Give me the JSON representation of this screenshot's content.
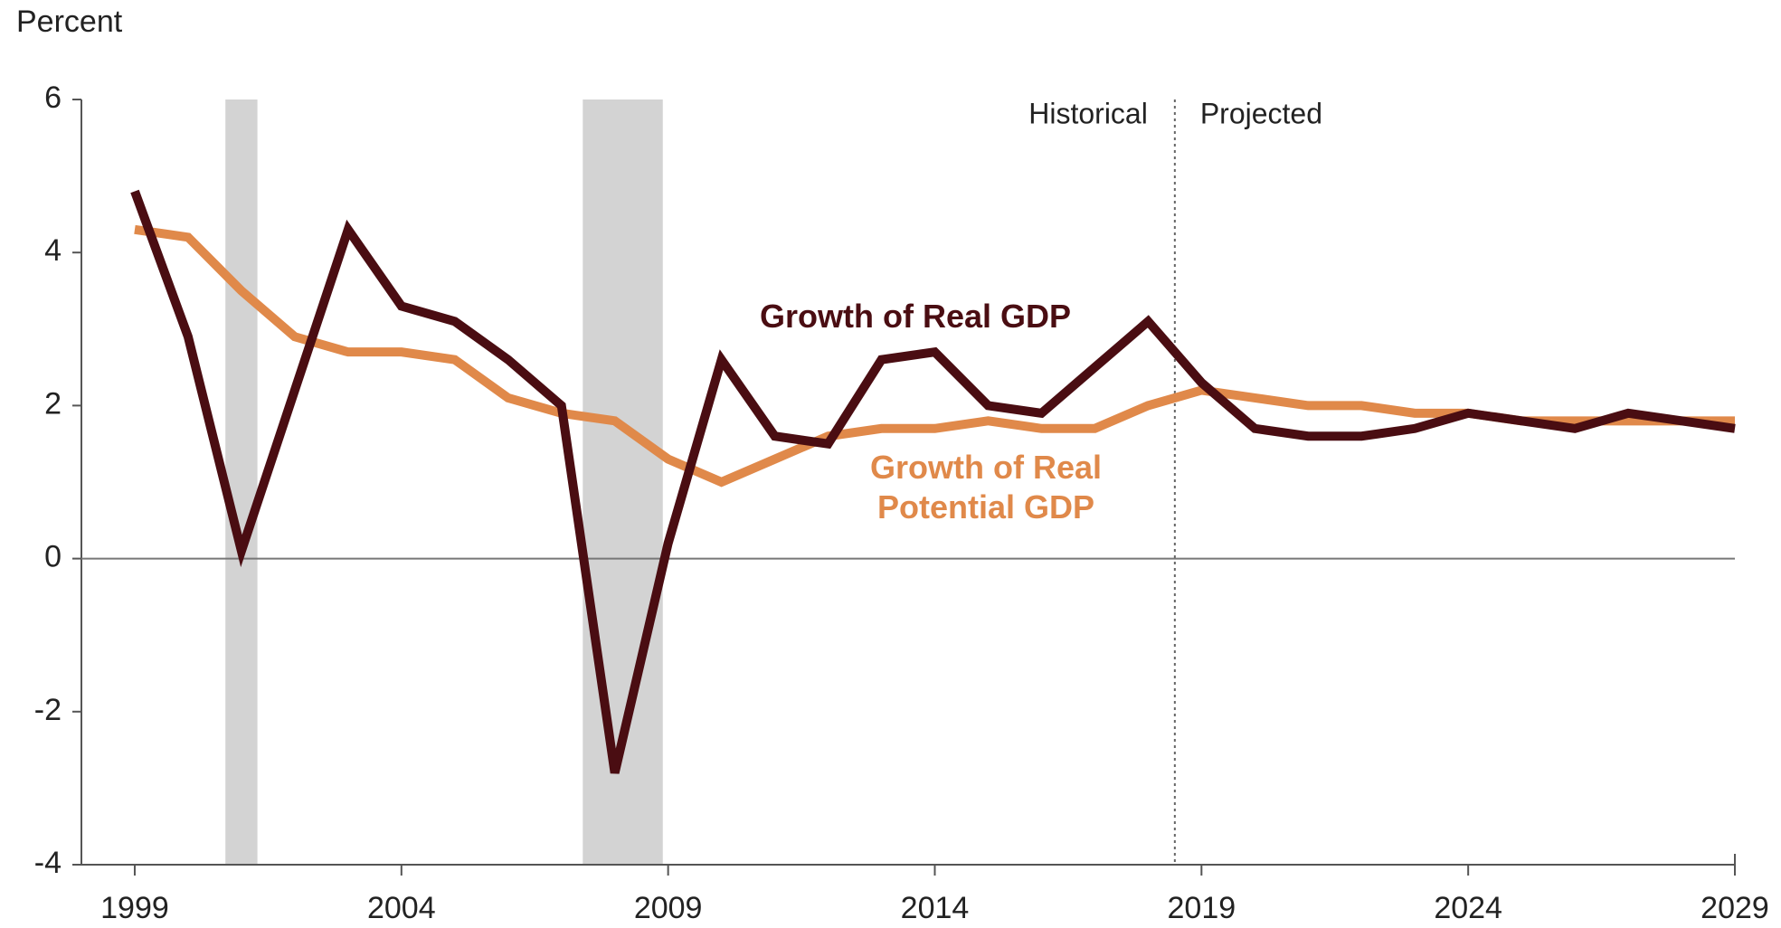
{
  "chart_data": {
    "type": "line",
    "y_axis_label": "Percent",
    "x": [
      1999,
      2000,
      2001,
      2002,
      2003,
      2004,
      2005,
      2006,
      2007,
      2008,
      2009,
      2010,
      2011,
      2012,
      2013,
      2014,
      2015,
      2016,
      2017,
      2018,
      2019,
      2020,
      2021,
      2022,
      2023,
      2024,
      2025,
      2026,
      2027,
      2028,
      2029
    ],
    "series": [
      {
        "name": "Growth of Real GDP",
        "color": "#4a0d12",
        "values": [
          4.8,
          2.9,
          0.1,
          2.2,
          4.3,
          3.3,
          3.1,
          2.6,
          2.0,
          -2.8,
          0.2,
          2.6,
          1.6,
          1.5,
          2.6,
          2.7,
          2.0,
          1.9,
          2.5,
          3.1,
          2.3,
          1.7,
          1.6,
          1.6,
          1.7,
          1.9,
          1.8,
          1.7,
          1.9,
          1.8,
          1.7
        ]
      },
      {
        "name": "Growth of Real Potential GDP",
        "color": "#e0894a",
        "values": [
          4.3,
          4.2,
          3.5,
          2.9,
          2.7,
          2.7,
          2.6,
          2.1,
          1.9,
          1.8,
          1.3,
          1.0,
          1.3,
          1.6,
          1.7,
          1.7,
          1.8,
          1.7,
          1.7,
          2.0,
          2.2,
          2.1,
          2.0,
          2.0,
          1.9,
          1.9,
          1.8,
          1.8,
          1.8,
          1.8,
          1.8
        ]
      }
    ],
    "shaded_periods": [
      [
        2000.7,
        2001.3
      ],
      [
        2007.4,
        2008.9
      ]
    ],
    "divider": {
      "x": 2018.5,
      "left_label": "Historical",
      "right_label": "Projected"
    },
    "xlim": [
      1998,
      2029
    ],
    "xticks": [
      1999,
      2004,
      2009,
      2014,
      2019,
      2024,
      2029
    ],
    "ylim": [
      -4,
      6
    ],
    "yticks": [
      -4,
      -2,
      0,
      2,
      4,
      6
    ]
  }
}
